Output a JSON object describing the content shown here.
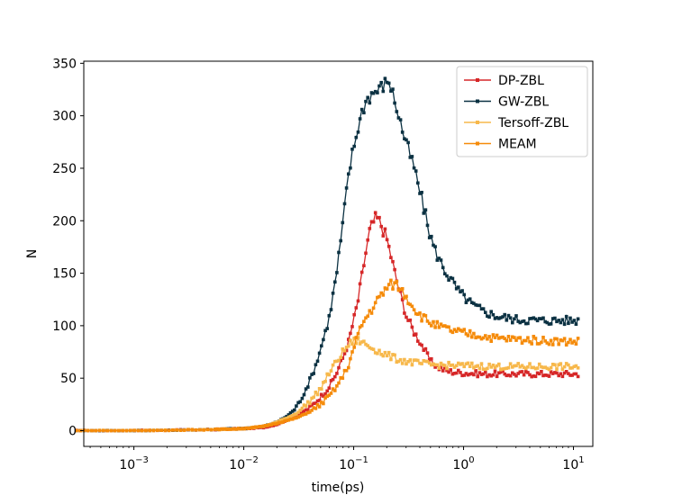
{
  "chart_data": {
    "type": "line",
    "title": "",
    "xlabel": "time(ps)",
    "ylabel": "N",
    "xscale": "log",
    "xlim": [
      0.00035,
      15
    ],
    "ylim": [
      -15,
      352
    ],
    "yticks": [
      0,
      50,
      100,
      150,
      200,
      250,
      300,
      350
    ],
    "yticklabels": [
      "0",
      "50",
      "100",
      "150",
      "200",
      "250",
      "300",
      "350"
    ],
    "xticks": [
      0.001,
      0.01,
      0.1,
      1,
      10
    ],
    "xticklabels": [
      {
        "base": "10",
        "exp": "−3"
      },
      {
        "base": "10",
        "exp": "−2"
      },
      {
        "base": "10",
        "exp": "−1"
      },
      {
        "base": "10",
        "exp": "0"
      },
      {
        "base": "10",
        "exp": "1"
      }
    ],
    "legend_position": "top-right",
    "series": [
      {
        "name": "DP-ZBL",
        "color": "#d62728",
        "points": [
          [
            0.0003,
            0
          ],
          [
            0.001,
            0
          ],
          [
            0.005,
            1
          ],
          [
            0.01,
            2
          ],
          [
            0.015,
            3
          ],
          [
            0.02,
            6
          ],
          [
            0.03,
            14
          ],
          [
            0.04,
            22
          ],
          [
            0.05,
            32
          ],
          [
            0.06,
            42
          ],
          [
            0.07,
            55
          ],
          [
            0.08,
            70
          ],
          [
            0.09,
            85
          ],
          [
            0.1,
            105
          ],
          [
            0.11,
            125
          ],
          [
            0.12,
            150
          ],
          [
            0.13,
            172
          ],
          [
            0.14,
            190
          ],
          [
            0.15,
            198
          ],
          [
            0.16,
            203
          ],
          [
            0.17,
            200
          ],
          [
            0.18,
            195
          ],
          [
            0.2,
            183
          ],
          [
            0.22,
            165
          ],
          [
            0.25,
            140
          ],
          [
            0.28,
            122
          ],
          [
            0.3,
            110
          ],
          [
            0.35,
            95
          ],
          [
            0.4,
            85
          ],
          [
            0.45,
            75
          ],
          [
            0.5,
            66
          ],
          [
            0.6,
            60
          ],
          [
            0.7,
            57
          ],
          [
            0.8,
            56
          ],
          [
            1.0,
            55
          ],
          [
            1.5,
            54
          ],
          [
            2,
            54
          ],
          [
            3,
            54
          ],
          [
            5,
            54
          ],
          [
            8,
            54
          ],
          [
            11,
            54
          ]
        ]
      },
      {
        "name": "GW-ZBL",
        "color": "#0b3142",
        "points": [
          [
            0.0003,
            0
          ],
          [
            0.001,
            0
          ],
          [
            0.005,
            1
          ],
          [
            0.01,
            2
          ],
          [
            0.015,
            4
          ],
          [
            0.02,
            8
          ],
          [
            0.025,
            14
          ],
          [
            0.03,
            22
          ],
          [
            0.035,
            35
          ],
          [
            0.04,
            48
          ],
          [
            0.045,
            62
          ],
          [
            0.05,
            78
          ],
          [
            0.06,
            108
          ],
          [
            0.07,
            150
          ],
          [
            0.08,
            198
          ],
          [
            0.09,
            245
          ],
          [
            0.1,
            270
          ],
          [
            0.11,
            290
          ],
          [
            0.12,
            305
          ],
          [
            0.13,
            315
          ],
          [
            0.15,
            322
          ],
          [
            0.17,
            325
          ],
          [
            0.19,
            330
          ],
          [
            0.21,
            334
          ],
          [
            0.22,
            326
          ],
          [
            0.25,
            305
          ],
          [
            0.28,
            285
          ],
          [
            0.32,
            265
          ],
          [
            0.36,
            248
          ],
          [
            0.4,
            228
          ],
          [
            0.45,
            205
          ],
          [
            0.5,
            185
          ],
          [
            0.55,
            172
          ],
          [
            0.6,
            163
          ],
          [
            0.7,
            150
          ],
          [
            0.8,
            141
          ],
          [
            0.9,
            133
          ],
          [
            1.0,
            128
          ],
          [
            1.2,
            120
          ],
          [
            1.5,
            114
          ],
          [
            2,
            109
          ],
          [
            3,
            106
          ],
          [
            5,
            105
          ],
          [
            8,
            105
          ],
          [
            11,
            105
          ]
        ]
      },
      {
        "name": "Tersoff-ZBL",
        "color": "#f7b84b",
        "points": [
          [
            0.0003,
            0
          ],
          [
            0.001,
            0
          ],
          [
            0.005,
            1
          ],
          [
            0.01,
            2
          ],
          [
            0.015,
            4
          ],
          [
            0.02,
            8
          ],
          [
            0.03,
            16
          ],
          [
            0.04,
            28
          ],
          [
            0.05,
            40
          ],
          [
            0.06,
            55
          ],
          [
            0.07,
            66
          ],
          [
            0.08,
            75
          ],
          [
            0.09,
            82
          ],
          [
            0.1,
            85
          ],
          [
            0.11,
            86
          ],
          [
            0.12,
            84
          ],
          [
            0.14,
            80
          ],
          [
            0.16,
            77
          ],
          [
            0.18,
            74
          ],
          [
            0.2,
            72
          ],
          [
            0.25,
            68
          ],
          [
            0.3,
            66
          ],
          [
            0.4,
            64
          ],
          [
            0.5,
            63
          ],
          [
            0.7,
            62
          ],
          [
            1.0,
            62
          ],
          [
            2,
            61
          ],
          [
            5,
            61
          ],
          [
            11,
            61
          ]
        ]
      },
      {
        "name": "MEAM",
        "color": "#f58b0a",
        "points": [
          [
            0.0003,
            0
          ],
          [
            0.001,
            0
          ],
          [
            0.005,
            1
          ],
          [
            0.01,
            2
          ],
          [
            0.015,
            4
          ],
          [
            0.02,
            7
          ],
          [
            0.03,
            12
          ],
          [
            0.04,
            18
          ],
          [
            0.05,
            25
          ],
          [
            0.06,
            33
          ],
          [
            0.07,
            42
          ],
          [
            0.08,
            52
          ],
          [
            0.09,
            63
          ],
          [
            0.1,
            78
          ],
          [
            0.11,
            92
          ],
          [
            0.12,
            102
          ],
          [
            0.14,
            113
          ],
          [
            0.16,
            122
          ],
          [
            0.18,
            130
          ],
          [
            0.2,
            136
          ],
          [
            0.22,
            139
          ],
          [
            0.24,
            140
          ],
          [
            0.27,
            135
          ],
          [
            0.3,
            128
          ],
          [
            0.35,
            118
          ],
          [
            0.4,
            110
          ],
          [
            0.5,
            103
          ],
          [
            0.6,
            99
          ],
          [
            0.8,
            95
          ],
          [
            1.0,
            93
          ],
          [
            1.5,
            90
          ],
          [
            2,
            88
          ],
          [
            3,
            87
          ],
          [
            5,
            86
          ],
          [
            8,
            85
          ],
          [
            11,
            85
          ]
        ]
      }
    ]
  }
}
